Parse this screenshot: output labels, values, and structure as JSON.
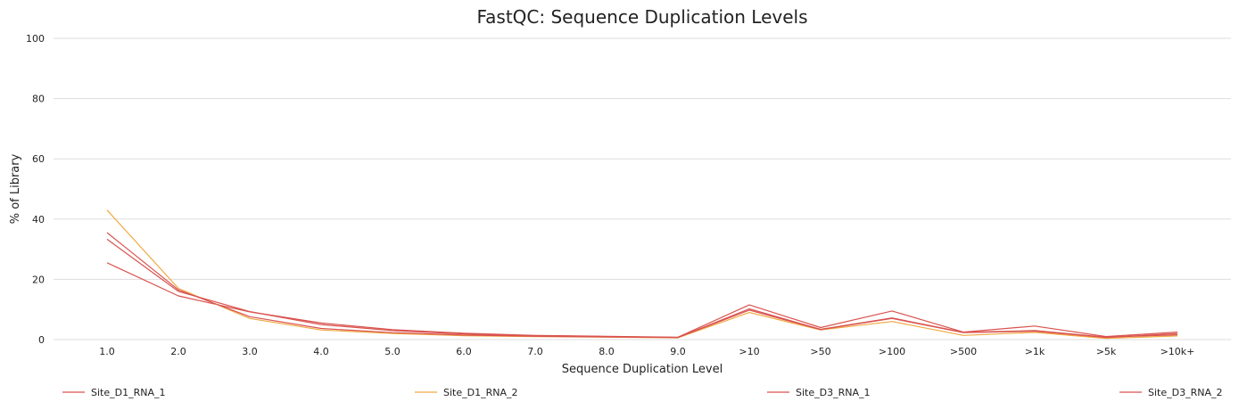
{
  "chart_data": {
    "type": "line",
    "title": "FastQC: Sequence Duplication Levels",
    "xlabel": "Sequence Duplication Level",
    "ylabel": "% of Library",
    "ylim": [
      0,
      100
    ],
    "yticks": [
      "0",
      "20",
      "40",
      "60",
      "80",
      "100"
    ],
    "grid": true,
    "legend_position": "bottom",
    "categories": [
      "1.0",
      "2.0",
      "3.0",
      "4.0",
      "5.0",
      "6.0",
      "7.0",
      "8.0",
      "9.0",
      ">10",
      ">50",
      ">100",
      ">500",
      ">1k",
      ">5k",
      ">10k+"
    ],
    "series": [
      {
        "name": "Site_D1_RNA_1",
        "color": "#d9534f",
        "values": [
          25.5,
          14.5,
          9.2,
          5.5,
          3.3,
          2.1,
          1.4,
          1.1,
          0.8,
          11.5,
          4.0,
          9.5,
          2.5,
          4.5,
          1.0,
          2.5
        ]
      },
      {
        "name": "Site_D1_RNA_2",
        "color": "#f0a840",
        "values": [
          43.0,
          17.0,
          7.0,
          3.2,
          2.0,
          1.3,
          1.0,
          0.8,
          0.6,
          9.0,
          3.2,
          6.0,
          1.4,
          2.4,
          0.4,
          1.2
        ]
      },
      {
        "name": "Site_D3_RNA_1",
        "color": "#d9534f",
        "values": [
          35.5,
          16.5,
          7.6,
          3.7,
          2.3,
          1.5,
          1.1,
          0.9,
          0.7,
          10.2,
          3.4,
          7.2,
          2.4,
          3.0,
          0.8,
          1.6
        ]
      },
      {
        "name": "Site_D3_RNA_2",
        "color": "#d9534f",
        "values": [
          33.3,
          16.0,
          9.3,
          5.0,
          3.0,
          1.9,
          1.3,
          1.0,
          0.7,
          9.8,
          3.3,
          7.0,
          2.3,
          2.8,
          0.7,
          2.0
        ]
      }
    ]
  }
}
